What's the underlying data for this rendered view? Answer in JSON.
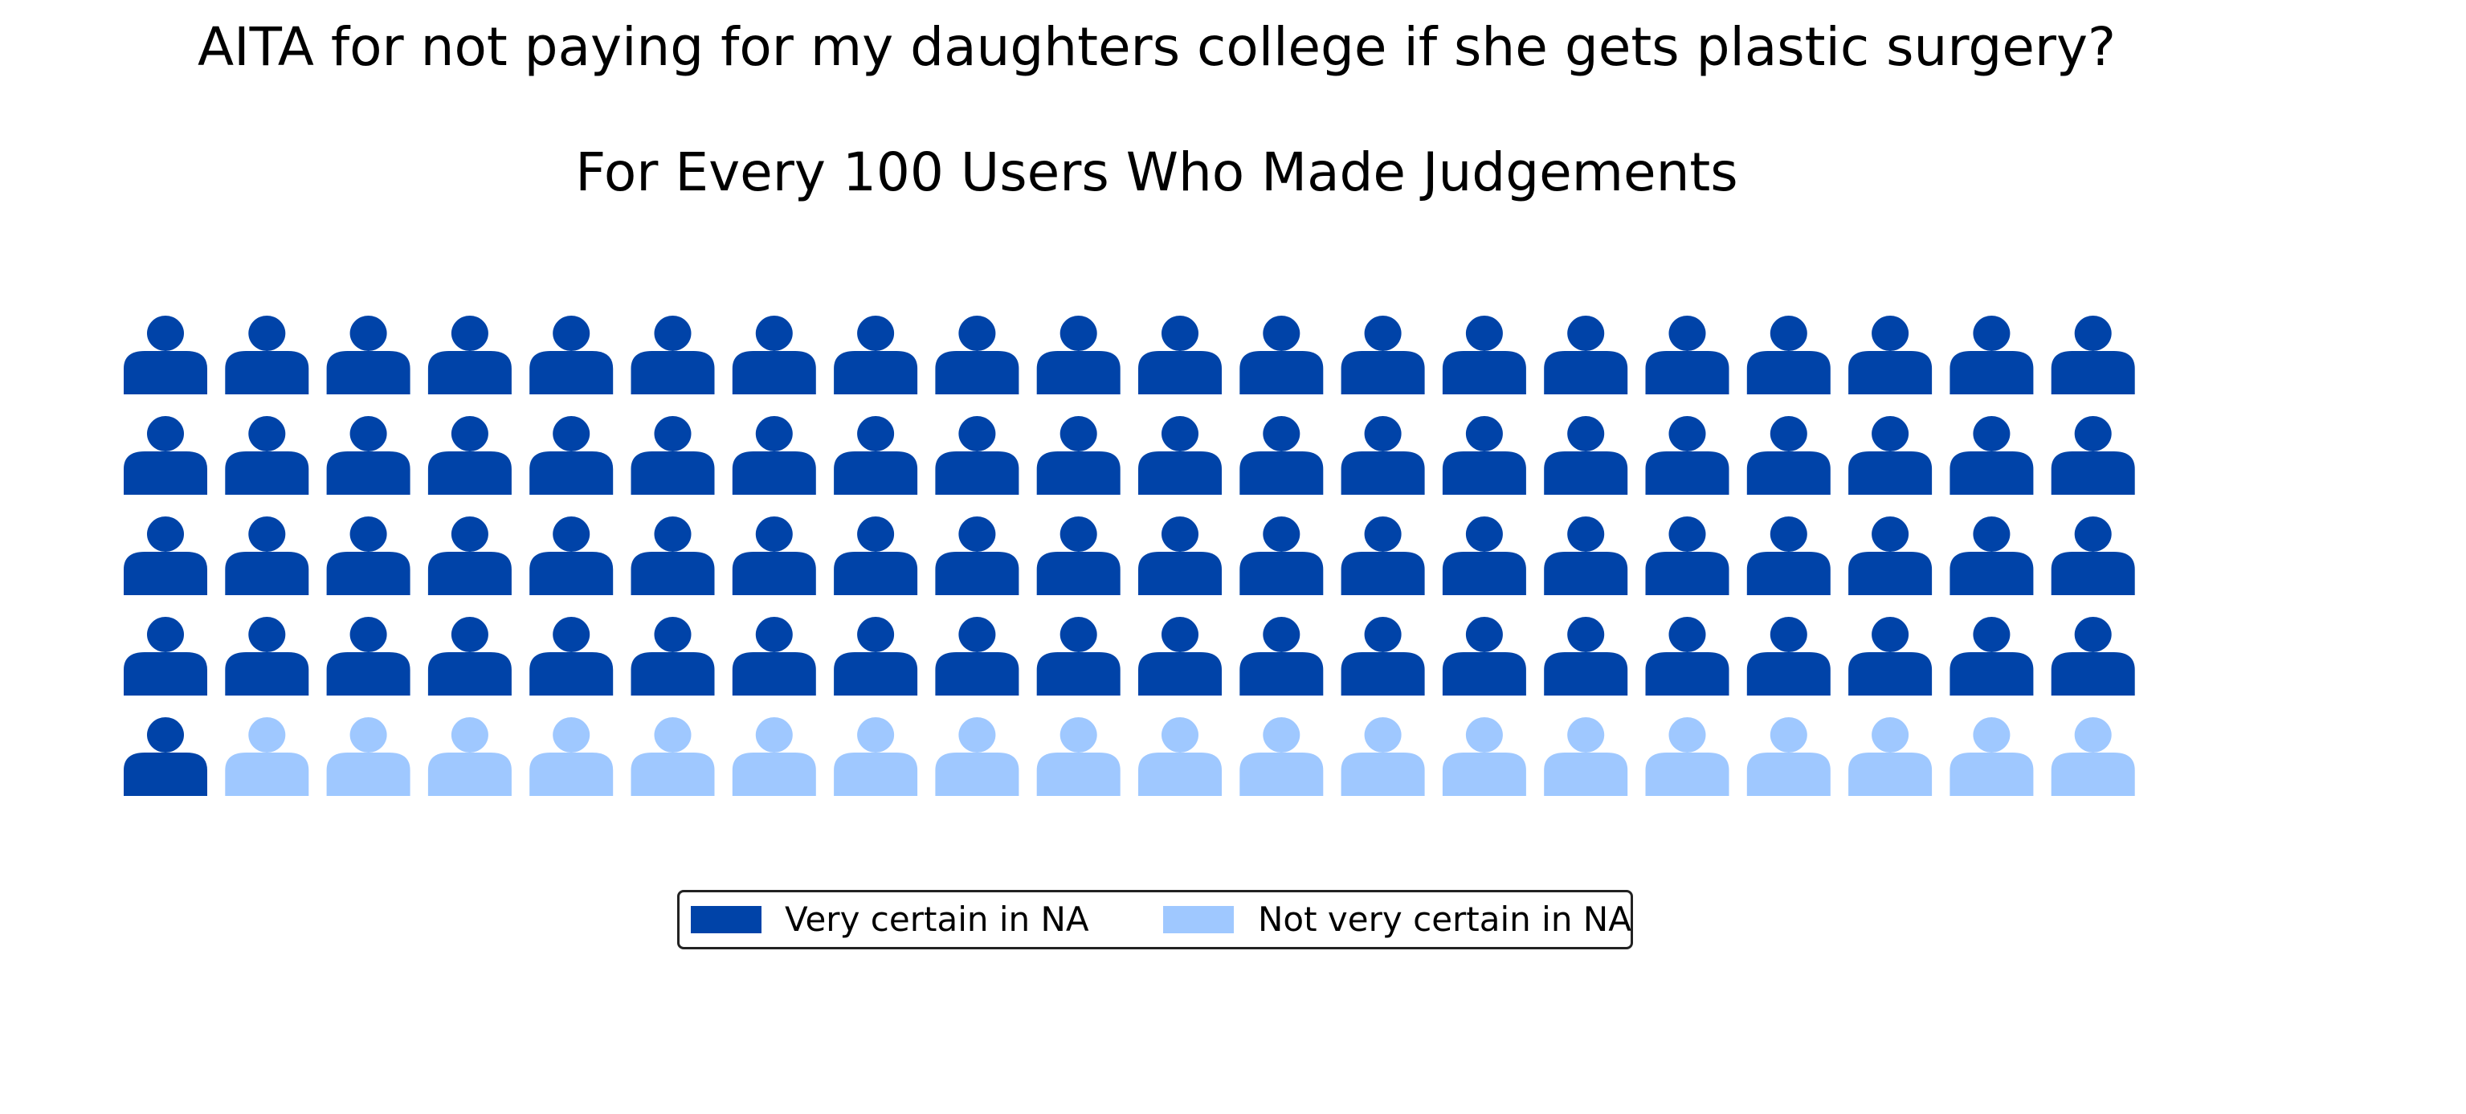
{
  "chart_data": {
    "type": "waffle",
    "title": "AITA for not paying for my daughters college if she gets plastic surgery?",
    "subtitle": "For Every 100 Users Who Made Judgements",
    "rows": 5,
    "columns": 20,
    "icon": "person-icon",
    "series": [
      {
        "name": "Very certain in NA",
        "value": 81,
        "color": "#0043a8"
      },
      {
        "name": "Not very certain in NA",
        "value": 19,
        "color": "#9fc8ff"
      }
    ],
    "legend_position": "bottom-center"
  }
}
